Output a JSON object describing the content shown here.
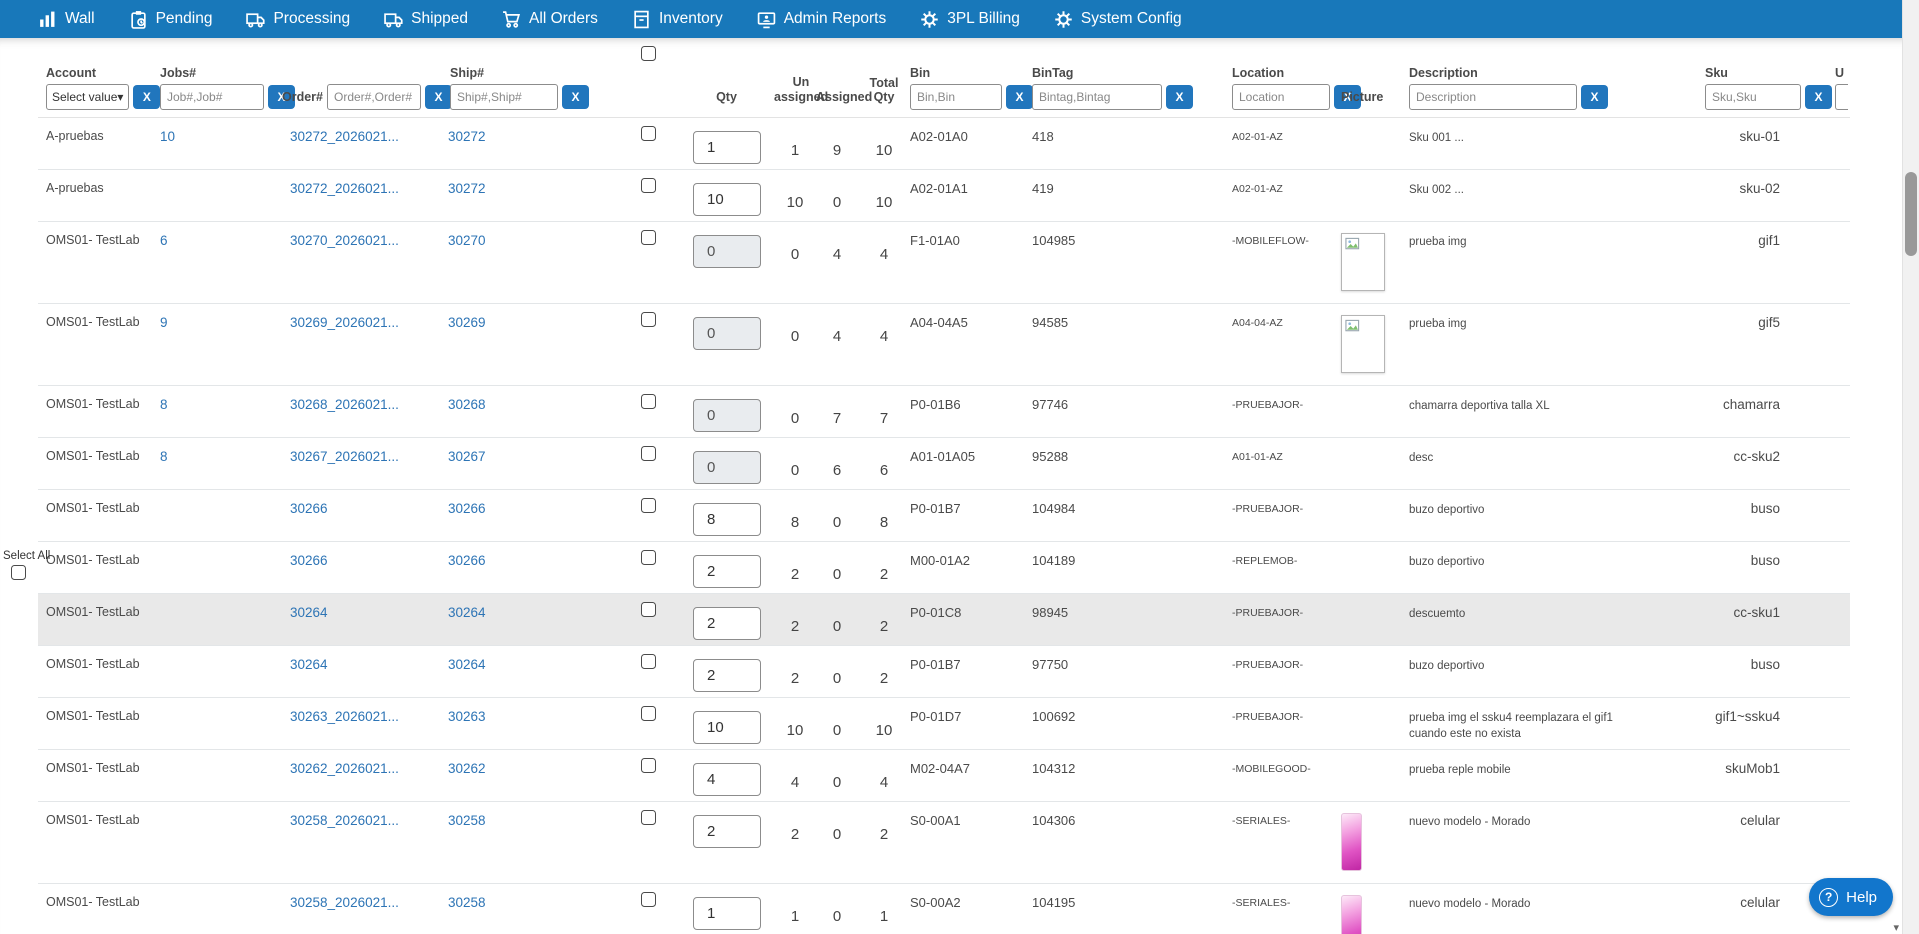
{
  "navbar": {
    "items": [
      {
        "label": "Wall",
        "icon": "bar-chart"
      },
      {
        "label": "Pending",
        "icon": "clipboard"
      },
      {
        "label": "Processing",
        "icon": "truck"
      },
      {
        "label": "Shipped",
        "icon": "truck"
      },
      {
        "label": "All Orders",
        "icon": "cart"
      },
      {
        "label": "Inventory",
        "icon": "archive-box"
      },
      {
        "label": "Admin Reports",
        "icon": "monitor"
      },
      {
        "label": "3PL Billing",
        "icon": "gear"
      },
      {
        "label": "System Config",
        "icon": "gear"
      }
    ]
  },
  "filters": {
    "account": {
      "label": "Account",
      "value": "Select value",
      "clear": "X"
    },
    "jobs": {
      "label": "Jobs#",
      "placeholder": "Job#,Job#",
      "clear": "X"
    },
    "order": {
      "label": "Order#",
      "placeholder": "Order#,Order#",
      "clear": "X"
    },
    "ship": {
      "label": "Ship#",
      "placeholder": "Ship#,Ship#",
      "clear": "X"
    },
    "qty_label": "Qty",
    "unassigned_label": "Un assigned",
    "assigned_label": "Assigned",
    "total_qty_label": "Total Qty",
    "bin": {
      "label": "Bin",
      "placeholder": "Bin,Bin",
      "clear": "X"
    },
    "bintag": {
      "label": "BinTag",
      "placeholder": "Bintag,Bintag",
      "clear": "X"
    },
    "location": {
      "label": "Location",
      "placeholder": "Location",
      "clear": "X"
    },
    "picture_label": "Picture",
    "description": {
      "label": "Description",
      "placeholder": "Description",
      "clear": "X"
    },
    "sku": {
      "label": "Sku",
      "placeholder": "Sku,Sku",
      "clear": "X"
    },
    "cut_label": "U"
  },
  "select_all_label": "Select All",
  "rows": [
    {
      "account": "A-pruebas",
      "jobs": "10",
      "order": "30272_2026021...",
      "ship": "30272",
      "qty": "1",
      "qty_disabled": false,
      "unassigned": "1",
      "assigned": "9",
      "total_qty": "10",
      "bin": "A02-01A0",
      "bintag": "418",
      "location": "A02-01-AZ",
      "picture": "none",
      "description": "Sku 001 ...",
      "sku": "sku-01",
      "highlighted": false
    },
    {
      "account": "A-pruebas",
      "jobs": "",
      "order": "30272_2026021...",
      "ship": "30272",
      "qty": "10",
      "qty_disabled": false,
      "unassigned": "10",
      "assigned": "0",
      "total_qty": "10",
      "bin": "A02-01A1",
      "bintag": "419",
      "location": "A02-01-AZ",
      "picture": "none",
      "description": "Sku 002 ...",
      "sku": "sku-02",
      "highlighted": false
    },
    {
      "account": "OMS01- TestLab",
      "jobs": "6",
      "order": "30270_2026021...",
      "ship": "30270",
      "qty": "0",
      "qty_disabled": true,
      "unassigned": "0",
      "assigned": "4",
      "total_qty": "4",
      "bin": "F1-01A0",
      "bintag": "104985",
      "location": "-MOBILEFLOW-",
      "picture": "broken",
      "description": "prueba img",
      "sku": "gif1",
      "highlighted": false
    },
    {
      "account": "OMS01- TestLab",
      "jobs": "9",
      "order": "30269_2026021...",
      "ship": "30269",
      "qty": "0",
      "qty_disabled": true,
      "unassigned": "0",
      "assigned": "4",
      "total_qty": "4",
      "bin": "A04-04A5",
      "bintag": "94585",
      "location": "A04-04-AZ",
      "picture": "broken",
      "description": "prueba img",
      "sku": "gif5",
      "highlighted": false
    },
    {
      "account": "OMS01- TestLab",
      "jobs": "8",
      "order": "30268_2026021...",
      "ship": "30268",
      "qty": "0",
      "qty_disabled": true,
      "unassigned": "0",
      "assigned": "7",
      "total_qty": "7",
      "bin": "P0-01B6",
      "bintag": "97746",
      "location": "-PRUEBAJOR-",
      "picture": "none",
      "description": "chamarra deportiva talla XL",
      "sku": "chamarra",
      "highlighted": false
    },
    {
      "account": "OMS01- TestLab",
      "jobs": "8",
      "order": "30267_2026021...",
      "ship": "30267",
      "qty": "0",
      "qty_disabled": true,
      "unassigned": "0",
      "assigned": "6",
      "total_qty": "6",
      "bin": "A01-01A05",
      "bintag": "95288",
      "location": "A01-01-AZ",
      "picture": "none",
      "description": "desc",
      "sku": "cc-sku2",
      "highlighted": false
    },
    {
      "account": "OMS01- TestLab",
      "jobs": "",
      "order": "30266",
      "ship": "30266",
      "qty": "8",
      "qty_disabled": false,
      "unassigned": "8",
      "assigned": "0",
      "total_qty": "8",
      "bin": "P0-01B7",
      "bintag": "104984",
      "location": "-PRUEBAJOR-",
      "picture": "none",
      "description": "buzo deportivo",
      "sku": "buso",
      "highlighted": false
    },
    {
      "account": "OMS01- TestLab",
      "jobs": "",
      "order": "30266",
      "ship": "30266",
      "qty": "2",
      "qty_disabled": false,
      "unassigned": "2",
      "assigned": "0",
      "total_qty": "2",
      "bin": "M00-01A2",
      "bintag": "104189",
      "location": "-REPLEMOB-",
      "picture": "none",
      "description": "buzo deportivo",
      "sku": "buso",
      "highlighted": false
    },
    {
      "account": "OMS01- TestLab",
      "jobs": "",
      "order": "30264",
      "ship": "30264",
      "qty": "2",
      "qty_disabled": false,
      "unassigned": "2",
      "assigned": "0",
      "total_qty": "2",
      "bin": "P0-01C8",
      "bintag": "98945",
      "location": "-PRUEBAJOR-",
      "picture": "none",
      "description": "descuemto",
      "sku": "cc-sku1",
      "highlighted": true
    },
    {
      "account": "OMS01- TestLab",
      "jobs": "",
      "order": "30264",
      "ship": "30264",
      "qty": "2",
      "qty_disabled": false,
      "unassigned": "2",
      "assigned": "0",
      "total_qty": "2",
      "bin": "P0-01B7",
      "bintag": "97750",
      "location": "-PRUEBAJOR-",
      "picture": "none",
      "description": "buzo deportivo",
      "sku": "buso",
      "highlighted": false
    },
    {
      "account": "OMS01- TestLab",
      "jobs": "",
      "order": "30263_2026021...",
      "ship": "30263",
      "qty": "10",
      "qty_disabled": false,
      "unassigned": "10",
      "assigned": "0",
      "total_qty": "10",
      "bin": "P0-01D7",
      "bintag": "100692",
      "location": "-PRUEBAJOR-",
      "picture": "none",
      "description": "prueba img el ssku4 reemplazara el gif1 cuando este no exista",
      "sku": "gif1~ssku4",
      "highlighted": false
    },
    {
      "account": "OMS01- TestLab",
      "jobs": "",
      "order": "30262_2026021...",
      "ship": "30262",
      "qty": "4",
      "qty_disabled": false,
      "unassigned": "4",
      "assigned": "0",
      "total_qty": "4",
      "bin": "M02-04A7",
      "bintag": "104312",
      "location": "-MOBILEGOOD-",
      "picture": "none",
      "description": "prueba reple mobile",
      "sku": "skuMob1",
      "highlighted": false
    },
    {
      "account": "OMS01- TestLab",
      "jobs": "",
      "order": "30258_2026021...",
      "ship": "30258",
      "qty": "2",
      "qty_disabled": false,
      "unassigned": "2",
      "assigned": "0",
      "total_qty": "2",
      "bin": "S0-00A1",
      "bintag": "104306",
      "location": "-SERIALES-",
      "picture": "phone",
      "description": "nuevo modelo - Morado",
      "sku": "celular",
      "highlighted": false
    },
    {
      "account": "OMS01- TestLab",
      "jobs": "",
      "order": "30258_2026021...",
      "ship": "30258",
      "qty": "1",
      "qty_disabled": false,
      "unassigned": "1",
      "assigned": "0",
      "total_qty": "1",
      "bin": "S0-00A2",
      "bintag": "104195",
      "location": "-SERIALES-",
      "picture": "phone",
      "description": "nuevo modelo - Morado",
      "sku": "celular",
      "highlighted": false
    }
  ],
  "help": {
    "icon": "?",
    "label": "Help"
  },
  "colors": {
    "navbar": "#1878ba",
    "link": "#2d74b5",
    "accent_button": "#2176bd",
    "row_highlight": "#e9e9e9",
    "help_button": "#1276cc"
  }
}
